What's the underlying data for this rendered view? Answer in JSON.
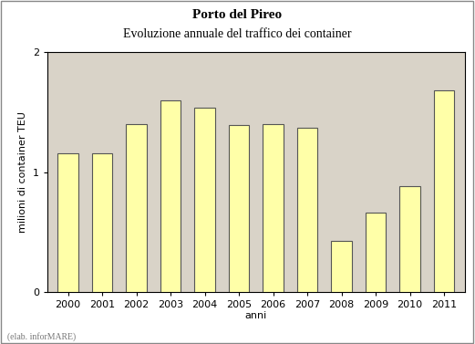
{
  "chart_data": {
    "type": "bar",
    "title": "Porto del Pireo",
    "subtitle": "Evoluzione annuale del traffico dei container",
    "x_label": "anni",
    "y_label": "milioni di container TEU",
    "note": "(elab. inforMARE)",
    "categories": [
      "2000",
      "2001",
      "2002",
      "2003",
      "2004",
      "2005",
      "2006",
      "2007",
      "2008",
      "2009",
      "2010",
      "2011"
    ],
    "values": [
      1.16,
      1.16,
      1.4,
      1.6,
      1.54,
      1.39,
      1.4,
      1.37,
      0.43,
      0.66,
      0.88,
      1.68
    ],
    "color": "#ffffa8",
    "ylim": [
      0,
      2
    ],
    "yticks": [
      0,
      1,
      2
    ],
    "grid": false
  }
}
